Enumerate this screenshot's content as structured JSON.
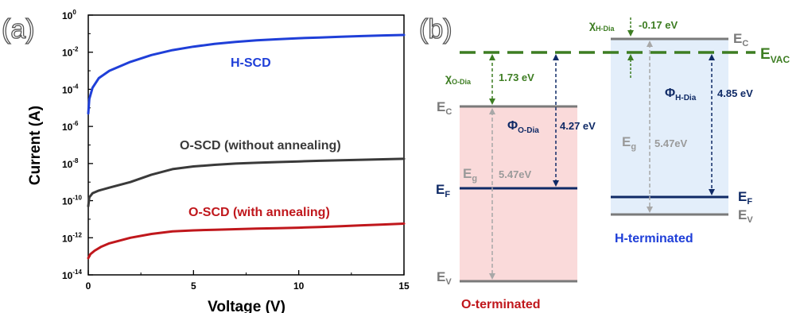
{
  "figure": {
    "panel_a_label": "(a)",
    "panel_b_label": "(b)"
  },
  "chart_data": [
    {
      "type": "line",
      "title": "",
      "xlabel": "Voltage (V)",
      "ylabel": "Current (A)",
      "xlim": [
        0,
        15
      ],
      "ylim_log10": [
        -14,
        0
      ],
      "y_scale": "log",
      "x_ticks": [
        "0",
        "5",
        "10",
        "15"
      ],
      "y_ticks": [
        {
          "base": "10",
          "exp": "0"
        },
        {
          "base": "10",
          "exp": "-2"
        },
        {
          "base": "10",
          "exp": "-4"
        },
        {
          "base": "10",
          "exp": "-6"
        },
        {
          "base": "10",
          "exp": "-8"
        },
        {
          "base": "10",
          "exp": "-10"
        },
        {
          "base": "10",
          "exp": "-12"
        },
        {
          "base": "10",
          "exp": "-14"
        }
      ],
      "grid": false,
      "series": [
        {
          "name": "H-SCD",
          "color": "#1f3fd8",
          "x": [
            0,
            0.05,
            0.2,
            0.5,
            1,
            2,
            3,
            4,
            5,
            6,
            7,
            8,
            9,
            10,
            11,
            12,
            13,
            14,
            15
          ],
          "y": [
            5e-06,
            3e-05,
            0.00012,
            0.0004,
            0.001,
            0.003,
            0.007,
            0.013,
            0.02,
            0.028,
            0.036,
            0.044,
            0.05,
            0.057,
            0.062,
            0.068,
            0.074,
            0.08,
            0.085
          ]
        },
        {
          "name": "O-SCD (without annealing)",
          "color": "#3a3a3a",
          "x": [
            0,
            0.05,
            0.2,
            0.5,
            1,
            2,
            3,
            4,
            5,
            6,
            7,
            8,
            9,
            10,
            11,
            12,
            13,
            14,
            15
          ],
          "y": [
            5e-11,
            1.5e-10,
            2.5e-10,
            3.5e-10,
            5e-10,
            1e-09,
            2.5e-09,
            5e-09,
            7e-09,
            8.5e-09,
            1e-08,
            1.1e-08,
            1.2e-08,
            1.3e-08,
            1.4e-08,
            1.5e-08,
            1.6e-08,
            1.7e-08,
            1.8e-08
          ]
        },
        {
          "name": "O-SCD (with annealing)",
          "color": "#c0171c",
          "x": [
            0,
            0.1,
            0.3,
            0.6,
            1,
            2,
            3,
            4,
            5,
            6,
            7,
            8,
            9,
            10,
            11,
            12,
            13,
            14,
            15
          ],
          "y": [
            8e-14,
            1.3e-13,
            2e-13,
            3.2e-13,
            5e-13,
            1e-12,
            1.6e-12,
            2.2e-12,
            2.5e-12,
            2.7e-12,
            2.9e-12,
            3.1e-12,
            3.3e-12,
            3.5e-12,
            3.8e-12,
            4.2e-12,
            4.7e-12,
            5.2e-12,
            5.8e-12
          ]
        }
      ]
    }
  ],
  "band_diagram": {
    "vacuum_label": "E",
    "vacuum_sub": "VAC",
    "vacuum_color": "#3d7d22",
    "o_terminated": {
      "title": "O-terminated",
      "title_color": "#c0171c",
      "fill_color": "#fadada",
      "ec_label": "E",
      "ec_sub": "C",
      "ev_label": "E",
      "ev_sub": "V",
      "ef_label": "E",
      "ef_sub": "F",
      "eg_label": "E",
      "eg_sub": "g",
      "eg_value": "5.47eV",
      "chi_label": "χ",
      "chi_sub": "O-Dia",
      "chi_value": "1.73 eV",
      "phi_label": "Φ",
      "phi_sub": "O-Dia",
      "phi_value": "4.27 eV"
    },
    "h_terminated": {
      "title": "H-terminated",
      "title_color": "#1f3fd8",
      "fill_color": "#e3eefa",
      "ec_label": "E",
      "ec_sub": "C",
      "ev_label": "E",
      "ev_sub": "V",
      "ef_label": "E",
      "ef_sub": "F",
      "eg_label": "E",
      "eg_sub": "g",
      "eg_value": "5.47eV",
      "chi_label": "χ",
      "chi_sub": "H-Dia",
      "chi_value": "-0.17 eV",
      "phi_label": "Φ",
      "phi_sub": "H-Dia",
      "phi_value": "4.85 eV"
    },
    "colors": {
      "band_edge": "#7a7a7a",
      "fermi": "#0f2a66",
      "gap_arrow": "#a8a8a8",
      "phi_arrow": "#0f2a66"
    }
  }
}
